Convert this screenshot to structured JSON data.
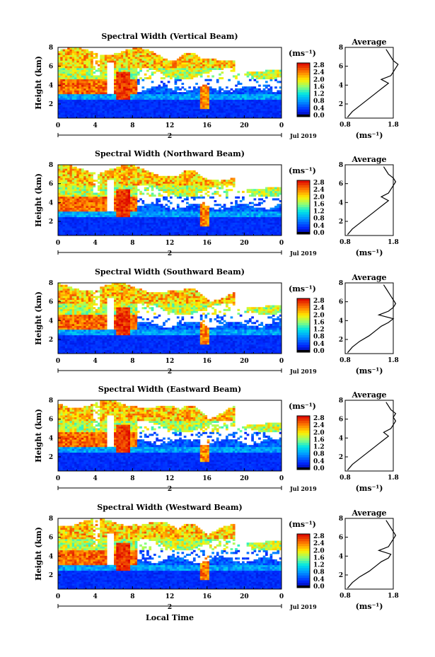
{
  "chart_data": [
    {
      "type": "heatmap",
      "title": "Spectral Width (Vertical Beam)",
      "ylabel": "Height (km)",
      "xticks": [
        "0",
        "4",
        "8",
        "12",
        "16",
        "20",
        "0"
      ],
      "yticks": [
        "2",
        "4",
        "6",
        "8"
      ],
      "xlim": [
        0,
        24
      ],
      "ylim": [
        0.5,
        8
      ],
      "colorbar": {
        "unit_label": "(ms⁻¹)",
        "ticks": [
          "2.8",
          "2.4",
          "2.0",
          "1.6",
          "1.2",
          "0.8",
          "0.4",
          "0.0"
        ]
      },
      "day_label": "2",
      "date_label": "Jul 2019",
      "profile": {
        "title": "Average",
        "xticks": [
          "0.8",
          "1.8"
        ],
        "yticks": [
          "2",
          "4",
          "6",
          "8"
        ],
        "xlabel": "(ms⁻¹)",
        "height": [
          0.6,
          1.2,
          1.8,
          2.4,
          3.0,
          3.4,
          3.8,
          4.2,
          4.6,
          5.0,
          5.4,
          5.8,
          6.2,
          6.6,
          7.0,
          7.4,
          7.8
        ],
        "width": [
          0.85,
          0.95,
          1.1,
          1.25,
          1.4,
          1.5,
          1.6,
          1.7,
          1.55,
          1.75,
          1.8,
          1.85,
          1.9,
          1.8,
          1.75,
          1.7,
          1.65
        ]
      }
    },
    {
      "type": "heatmap",
      "title": "Spectral Width (Northward Beam)",
      "ylabel": "Height (km)",
      "xticks": [
        "0",
        "4",
        "8",
        "12",
        "16",
        "20",
        "0"
      ],
      "yticks": [
        "2",
        "4",
        "6",
        "8"
      ],
      "xlim": [
        0,
        24
      ],
      "ylim": [
        0.5,
        8
      ],
      "colorbar": {
        "unit_label": "(ms⁻¹)",
        "ticks": [
          "2.8",
          "2.4",
          "2.0",
          "1.6",
          "1.2",
          "0.8",
          "0.4",
          "0.0"
        ]
      },
      "day_label": "2",
      "date_label": "Jul 2019",
      "profile": {
        "title": "Average",
        "xticks": [
          "0.8",
          "1.8"
        ],
        "yticks": [
          "2",
          "4",
          "6",
          "8"
        ],
        "xlabel": "(ms⁻¹)",
        "height": [
          0.6,
          1.2,
          1.8,
          2.4,
          3.0,
          3.4,
          3.8,
          4.2,
          4.6,
          5.0,
          5.4,
          5.8,
          6.2,
          6.6,
          7.0,
          7.4,
          7.8
        ],
        "width": [
          0.85,
          0.95,
          1.1,
          1.25,
          1.4,
          1.5,
          1.6,
          1.7,
          1.55,
          1.7,
          1.75,
          1.8,
          1.85,
          1.8,
          1.7,
          1.65,
          1.6
        ]
      }
    },
    {
      "type": "heatmap",
      "title": "Spectral Width (Southward Beam)",
      "ylabel": "Height (km)",
      "xticks": [
        "0",
        "4",
        "8",
        "12",
        "16",
        "20",
        "0"
      ],
      "yticks": [
        "2",
        "4",
        "6",
        "8"
      ],
      "xlim": [
        0,
        24
      ],
      "ylim": [
        0.5,
        8
      ],
      "colorbar": {
        "unit_label": "(ms⁻¹)",
        "ticks": [
          "2.8",
          "2.4",
          "2.0",
          "1.6",
          "1.2",
          "0.8",
          "0.4",
          "0.0"
        ]
      },
      "day_label": "2",
      "date_label": "Jul 2019",
      "profile": {
        "title": "Average",
        "xticks": [
          "0.8",
          "1.8"
        ],
        "yticks": [
          "2",
          "4",
          "6",
          "8"
        ],
        "xlabel": "(ms⁻¹)",
        "height": [
          0.6,
          1.2,
          1.8,
          2.4,
          3.0,
          3.4,
          3.8,
          4.2,
          4.6,
          5.0,
          5.4,
          5.8,
          6.2,
          6.6,
          7.0,
          7.4,
          7.8
        ],
        "width": [
          0.85,
          0.95,
          1.1,
          1.3,
          1.45,
          1.55,
          1.7,
          1.8,
          1.5,
          1.7,
          1.8,
          1.85,
          1.8,
          1.75,
          1.7,
          1.65,
          1.6
        ]
      }
    },
    {
      "type": "heatmap",
      "title": "Spectral Width (Eastward Beam)",
      "ylabel": "Height (km)",
      "xticks": [
        "0",
        "4",
        "8",
        "12",
        "16",
        "20",
        "0"
      ],
      "yticks": [
        "2",
        "4",
        "6",
        "8"
      ],
      "xlim": [
        0,
        24
      ],
      "ylim": [
        0.5,
        8
      ],
      "colorbar": {
        "unit_label": "(ms⁻¹)",
        "ticks": [
          "2.8",
          "2.4",
          "2.0",
          "1.6",
          "1.2",
          "0.8",
          "0.4",
          "0.0"
        ]
      },
      "day_label": "2",
      "date_label": "Jul 2019",
      "profile": {
        "title": "Average",
        "xticks": [
          "0.8",
          "1.8"
        ],
        "yticks": [
          "2",
          "4",
          "6",
          "8"
        ],
        "xlabel": "(ms⁻¹)",
        "height": [
          0.6,
          1.2,
          1.8,
          2.4,
          3.0,
          3.4,
          3.8,
          4.2,
          4.6,
          5.0,
          5.4,
          5.8,
          6.2,
          6.6,
          7.0,
          7.4,
          7.8
        ],
        "width": [
          0.85,
          0.95,
          1.1,
          1.25,
          1.4,
          1.5,
          1.6,
          1.7,
          1.6,
          1.75,
          1.8,
          1.85,
          1.8,
          1.85,
          1.75,
          1.7,
          1.65
        ]
      }
    },
    {
      "type": "heatmap",
      "title": "Spectral Width (Westward Beam)",
      "ylabel": "Height (km)",
      "xticks": [
        "0",
        "4",
        "8",
        "12",
        "16",
        "20",
        "0"
      ],
      "yticks": [
        "2",
        "4",
        "6",
        "8"
      ],
      "xlim": [
        0,
        24
      ],
      "ylim": [
        0.5,
        8
      ],
      "colorbar": {
        "unit_label": "(ms⁻¹)",
        "ticks": [
          "2.8",
          "2.4",
          "2.0",
          "1.6",
          "1.2",
          "0.8",
          "0.4",
          "0.0"
        ]
      },
      "day_label": "2",
      "date_label": "Jul 2019",
      "xlabel": "Local Time",
      "profile": {
        "title": "Average",
        "xticks": [
          "0.8",
          "1.8"
        ],
        "yticks": [
          "2",
          "4",
          "6",
          "8"
        ],
        "xlabel": "(ms⁻¹)",
        "height": [
          0.6,
          1.2,
          1.8,
          2.4,
          3.0,
          3.4,
          3.8,
          4.2,
          4.6,
          5.0,
          5.4,
          5.8,
          6.2,
          6.6,
          7.0,
          7.4,
          7.8
        ],
        "width": [
          0.85,
          0.95,
          1.1,
          1.3,
          1.45,
          1.55,
          1.7,
          1.75,
          1.5,
          1.7,
          1.75,
          1.8,
          1.85,
          1.8,
          1.75,
          1.7,
          1.65
        ]
      }
    }
  ]
}
